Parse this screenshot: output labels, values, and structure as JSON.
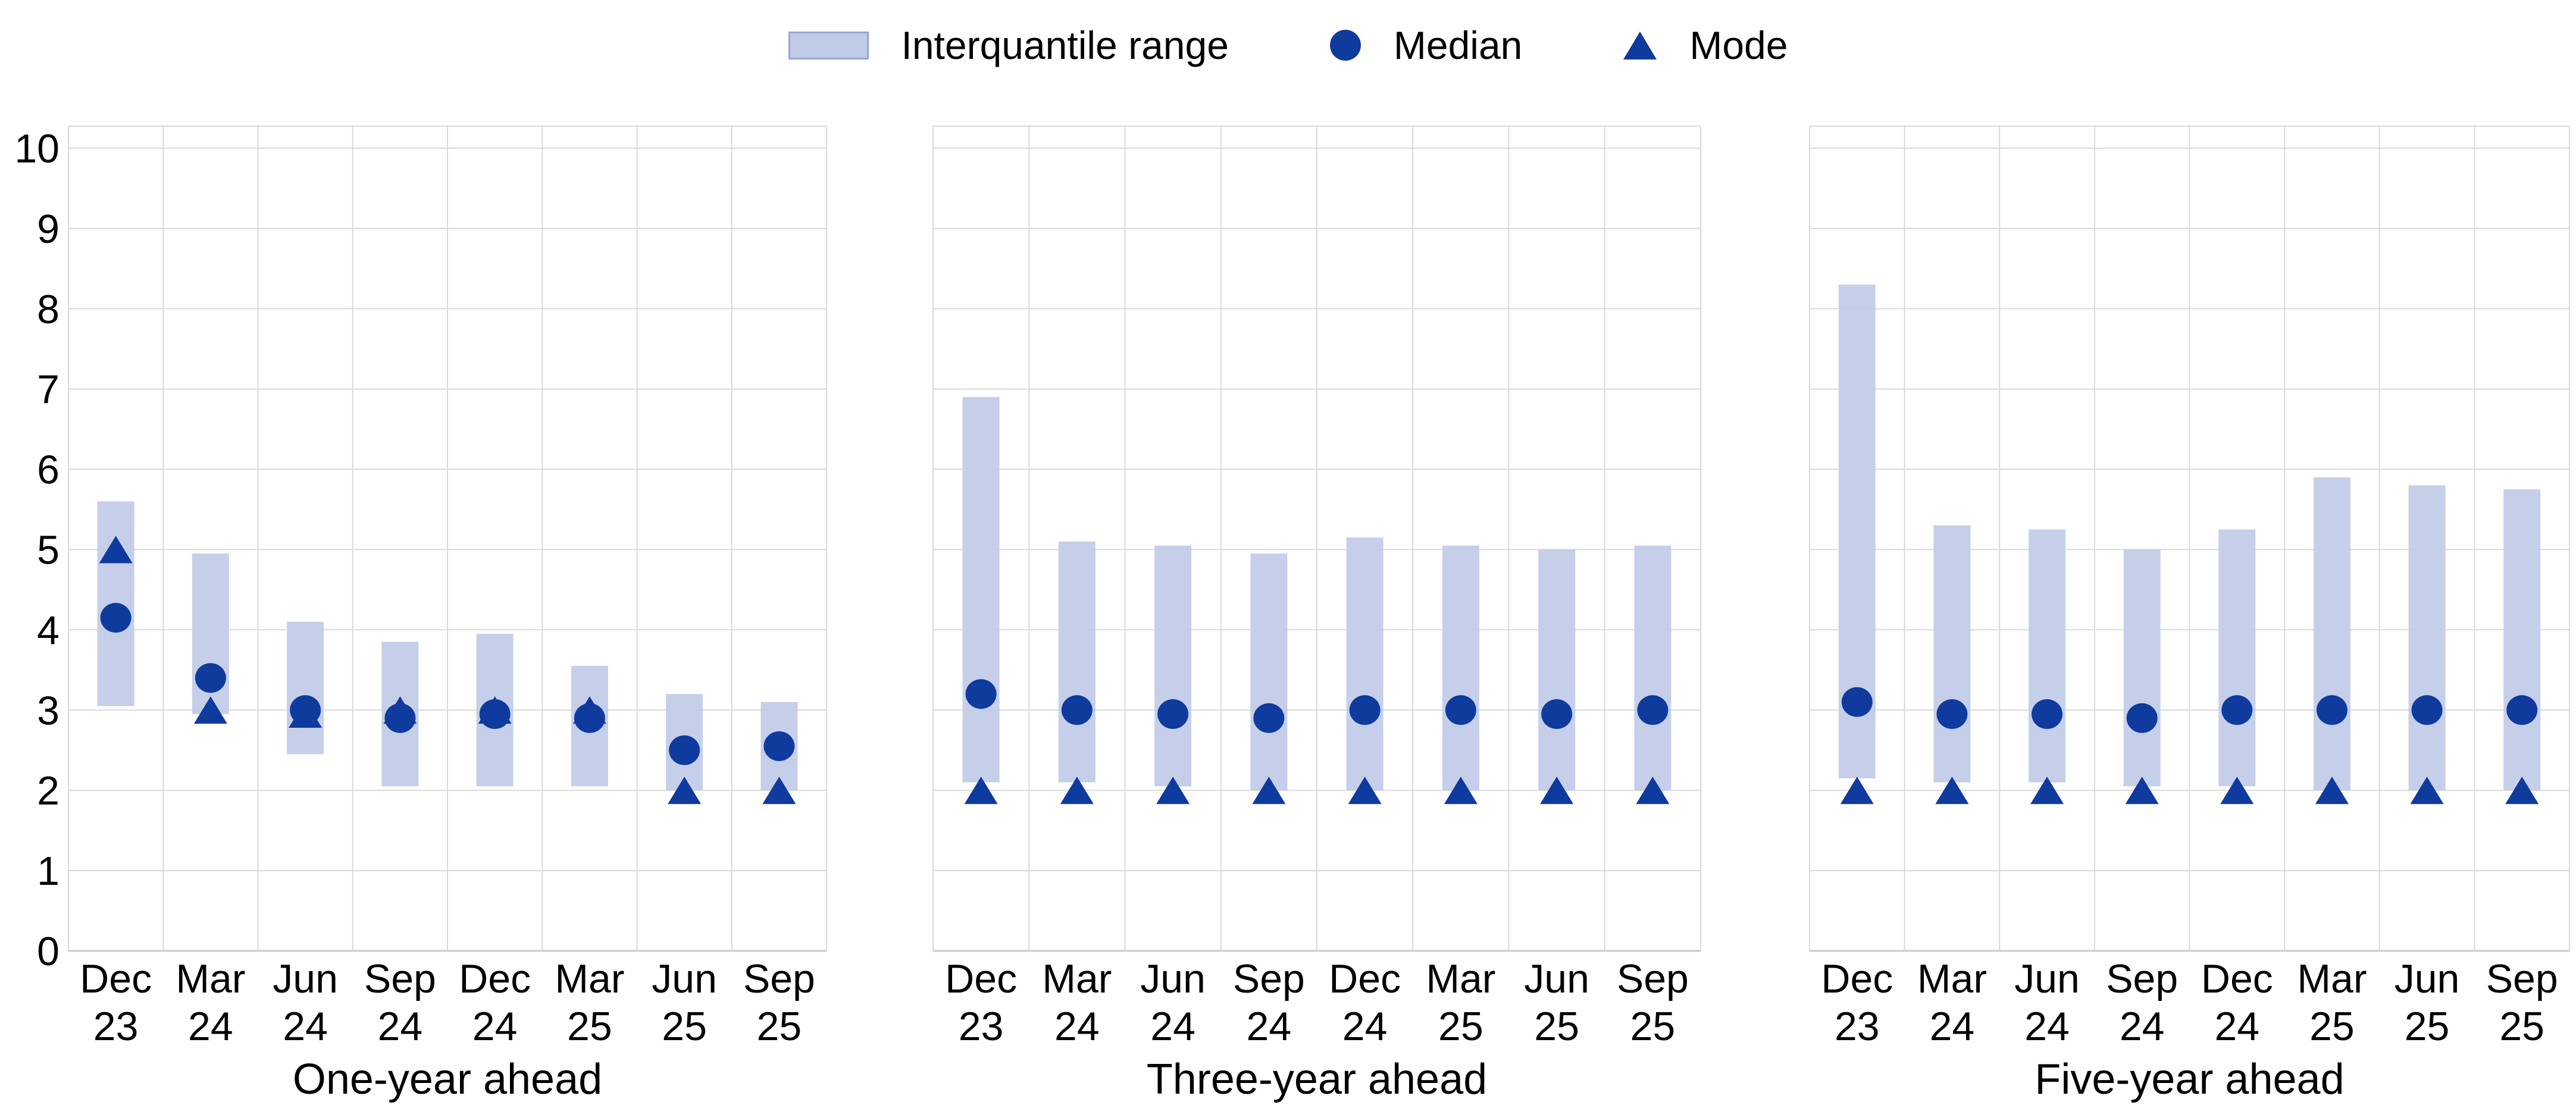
{
  "legend": {
    "items": [
      {
        "marker": "box",
        "label": "Interquantile range"
      },
      {
        "marker": "circle",
        "label": "Median"
      },
      {
        "marker": "triangle",
        "label": "Mode"
      }
    ]
  },
  "colors": {
    "iqr_fill": "#c0cbe7",
    "iqr_legend_border": "#94a6d2",
    "marker_blue": "#0f3a9e",
    "gridline": "#d9d9d9",
    "axis_line": "#c9c9c9",
    "text": "#000000",
    "background": "#ffffff"
  },
  "y_axis": {
    "min": 0,
    "max": 10,
    "tick_labels": [
      "0",
      "1",
      "2",
      "3",
      "4",
      "5",
      "6",
      "7",
      "8",
      "9",
      "10"
    ]
  },
  "chart_data": {
    "type": "bar",
    "subtype": "interquantile-range-with-median-and-mode-markers",
    "title": "",
    "ylabel": "",
    "ylim": [
      0,
      10
    ],
    "yticks": [
      0,
      1,
      2,
      3,
      4,
      5,
      6,
      7,
      8,
      9,
      10
    ],
    "grid": "both",
    "legend": [
      "Interquantile range",
      "Median",
      "Mode"
    ],
    "legend_position": "top-center",
    "categories": [
      "Dec 23",
      "Mar 24",
      "Jun 24",
      "Sep 24",
      "Dec 24",
      "Mar 25",
      "Jun 25",
      "Sep 25"
    ],
    "category_labels_line1": [
      "Dec",
      "Mar",
      "Jun",
      "Sep",
      "Dec",
      "Mar",
      "Jun",
      "Sep"
    ],
    "category_labels_line2": [
      "23",
      "24",
      "24",
      "24",
      "24",
      "25",
      "25",
      "25"
    ],
    "panels": [
      {
        "xlabel": "One-year ahead",
        "iqr_low": [
          3.05,
          2.95,
          2.45,
          2.05,
          2.05,
          2.05,
          2.0,
          2.0
        ],
        "iqr_high": [
          5.6,
          4.95,
          4.1,
          3.85,
          3.95,
          3.55,
          3.2,
          3.1
        ],
        "median": [
          4.15,
          3.4,
          3.0,
          2.9,
          2.95,
          2.9,
          2.5,
          2.55
        ],
        "mode": [
          5.0,
          3.0,
          2.95,
          3.0,
          3.0,
          3.0,
          2.0,
          2.0
        ]
      },
      {
        "xlabel": "Three-year ahead",
        "iqr_low": [
          2.1,
          2.1,
          2.05,
          2.0,
          2.0,
          2.0,
          2.0,
          2.0
        ],
        "iqr_high": [
          6.9,
          5.1,
          5.05,
          4.95,
          5.15,
          5.05,
          5.0,
          5.05
        ],
        "median": [
          3.2,
          3.0,
          2.95,
          2.9,
          3.0,
          3.0,
          2.95,
          3.0
        ],
        "mode": [
          2.0,
          2.0,
          2.0,
          2.0,
          2.0,
          2.0,
          2.0,
          2.0
        ]
      },
      {
        "xlabel": "Five-year ahead",
        "iqr_low": [
          2.15,
          2.1,
          2.1,
          2.05,
          2.05,
          2.0,
          2.0,
          2.0
        ],
        "iqr_high": [
          8.3,
          5.3,
          5.25,
          5.0,
          5.25,
          5.9,
          5.8,
          5.75
        ],
        "median": [
          3.1,
          2.95,
          2.95,
          2.9,
          3.0,
          3.0,
          3.0,
          3.0
        ],
        "mode": [
          2.0,
          2.0,
          2.0,
          2.0,
          2.0,
          2.0,
          2.0,
          2.0
        ]
      }
    ]
  }
}
